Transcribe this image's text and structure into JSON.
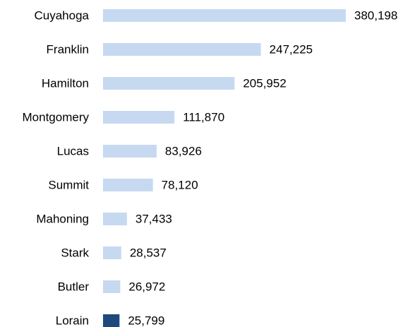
{
  "chart_data": {
    "type": "bar",
    "orientation": "horizontal",
    "categories": [
      "Cuyahoga",
      "Franklin",
      "Hamilton",
      "Montgomery",
      "Lucas",
      "Summit",
      "Mahoning",
      "Stark",
      "Butler",
      "Lorain"
    ],
    "values": [
      380198,
      247225,
      205952,
      111870,
      83926,
      78120,
      37433,
      28537,
      26972,
      25799
    ],
    "value_labels": [
      "380,198",
      "247,225",
      "205,952",
      "111,870",
      "83,926",
      "78,120",
      "37,433",
      "28,537",
      "26,972",
      "25,799"
    ],
    "colors": [
      "#c6d9f1",
      "#c6d9f1",
      "#c6d9f1",
      "#c6d9f1",
      "#c6d9f1",
      "#c6d9f1",
      "#c6d9f1",
      "#c6d9f1",
      "#c6d9f1",
      "#1f497d"
    ]
  }
}
